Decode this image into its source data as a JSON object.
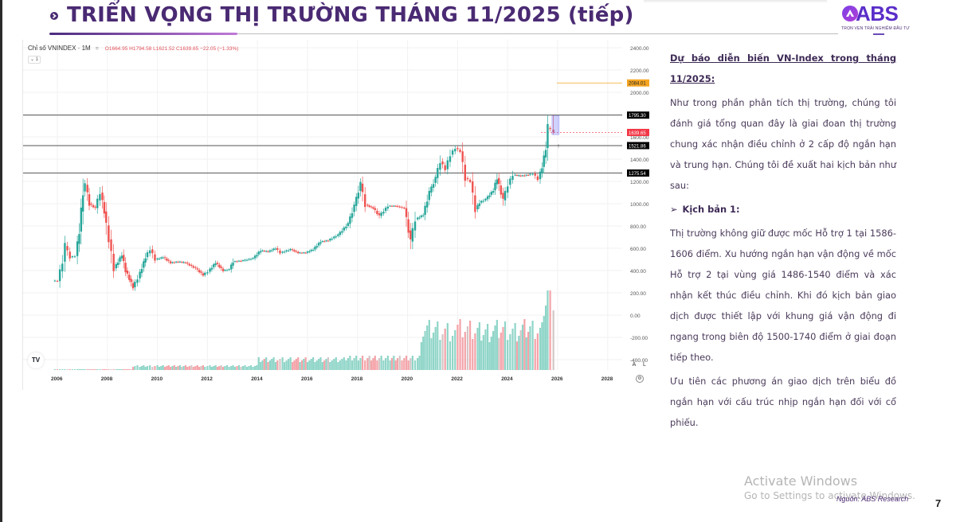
{
  "header": {
    "title": "TRIỂN VỌNG THỊ TRƯỜNG THÁNG 11/2025 (tiếp)",
    "logo_text": "ABS",
    "logo_tagline": "TRỌN VẸN TRẢI NGHIỆM ĐẦU TƯ",
    "accent_color": "#4a2a73",
    "brand_color": "#5a2ec9"
  },
  "chart_panel": {
    "symbol_label": "Chỉ số VNINDEX · 1M",
    "ohlc": "O1664.95 H1794.58 L1621.52 C1639.65 −22.05 (−1.33%)",
    "collapse_label": "⌄ 1",
    "tv_logo": "TV",
    "scale_auto": "A",
    "scale_log": "L",
    "settings_icon": "⚙"
  },
  "chart_data": {
    "type": "candlestick",
    "title": "Chỉ số VNINDEX · 1M",
    "xlabel": "",
    "ylabel": "",
    "ylim": [
      -400,
      2400
    ],
    "y_ticks": [
      2400,
      2200,
      2000,
      1800,
      1600,
      1400,
      1200,
      1000,
      800,
      600,
      400,
      200,
      0,
      -200,
      -400
    ],
    "y_tick_labels": [
      "2400.00",
      "2200.00",
      "2000.00",
      "",
      "1600.00",
      "1400.00",
      "1200.00",
      "1000.00",
      "800.00",
      "600.00",
      "400.00",
      "200.00",
      "0.00",
      "-200.00",
      "-400.00"
    ],
    "x_ticks": [
      "2006",
      "2008",
      "2010",
      "2012",
      "2014",
      "2016",
      "2018",
      "2020",
      "2022",
      "2024",
      "2026",
      "2028"
    ],
    "last_bar": {
      "open": 1664.95,
      "high": 1794.58,
      "low": 1621.52,
      "close": 1639.65,
      "change": -22.05,
      "change_pct": -1.33
    },
    "horizontal_levels": [
      {
        "value": 2084.01,
        "label": "2084.01",
        "color": "#f5a623"
      },
      {
        "value": 1795.3,
        "label": "1795.30",
        "color": "#000000"
      },
      {
        "value": 1639.65,
        "label": "1639.65",
        "color": "#f23645"
      },
      {
        "value": 1521.86,
        "label": "1521.86",
        "color": "#000000"
      },
      {
        "value": 1275.54,
        "label": "1275.54",
        "color": "#000000"
      }
    ],
    "price_path": [
      {
        "t": 2005.9,
        "v": 310
      },
      {
        "t": 2006.1,
        "v": 305
      },
      {
        "t": 2006.3,
        "v": 480
      },
      {
        "t": 2006.4,
        "v": 620
      },
      {
        "t": 2006.6,
        "v": 520
      },
      {
        "t": 2006.8,
        "v": 530
      },
      {
        "t": 2006.95,
        "v": 750
      },
      {
        "t": 2007.1,
        "v": 1110
      },
      {
        "t": 2007.2,
        "v": 1170
      },
      {
        "t": 2007.35,
        "v": 1000
      },
      {
        "t": 2007.6,
        "v": 960
      },
      {
        "t": 2007.8,
        "v": 1100
      },
      {
        "t": 2007.95,
        "v": 930
      },
      {
        "t": 2008.15,
        "v": 680
      },
      {
        "t": 2008.35,
        "v": 420
      },
      {
        "t": 2008.5,
        "v": 480
      },
      {
        "t": 2008.65,
        "v": 540
      },
      {
        "t": 2008.8,
        "v": 400
      },
      {
        "t": 2009.1,
        "v": 250
      },
      {
        "t": 2009.3,
        "v": 330
      },
      {
        "t": 2009.6,
        "v": 520
      },
      {
        "t": 2009.8,
        "v": 590
      },
      {
        "t": 2010.0,
        "v": 500
      },
      {
        "t": 2010.3,
        "v": 520
      },
      {
        "t": 2010.6,
        "v": 470
      },
      {
        "t": 2010.9,
        "v": 480
      },
      {
        "t": 2011.2,
        "v": 470
      },
      {
        "t": 2011.6,
        "v": 420
      },
      {
        "t": 2011.9,
        "v": 360
      },
      {
        "t": 2012.1,
        "v": 390
      },
      {
        "t": 2012.4,
        "v": 470
      },
      {
        "t": 2012.7,
        "v": 400
      },
      {
        "t": 2012.95,
        "v": 410
      },
      {
        "t": 2013.1,
        "v": 480
      },
      {
        "t": 2013.5,
        "v": 490
      },
      {
        "t": 2013.9,
        "v": 510
      },
      {
        "t": 2014.2,
        "v": 580
      },
      {
        "t": 2014.5,
        "v": 570
      },
      {
        "t": 2014.8,
        "v": 600
      },
      {
        "t": 2015.0,
        "v": 560
      },
      {
        "t": 2015.4,
        "v": 590
      },
      {
        "t": 2015.7,
        "v": 560
      },
      {
        "t": 2016.0,
        "v": 560
      },
      {
        "t": 2016.3,
        "v": 590
      },
      {
        "t": 2016.6,
        "v": 660
      },
      {
        "t": 2016.9,
        "v": 670
      },
      {
        "t": 2017.3,
        "v": 720
      },
      {
        "t": 2017.7,
        "v": 820
      },
      {
        "t": 2017.95,
        "v": 980
      },
      {
        "t": 2018.2,
        "v": 1180
      },
      {
        "t": 2018.4,
        "v": 990
      },
      {
        "t": 2018.7,
        "v": 960
      },
      {
        "t": 2018.95,
        "v": 890
      },
      {
        "t": 2019.3,
        "v": 980
      },
      {
        "t": 2019.6,
        "v": 980
      },
      {
        "t": 2019.95,
        "v": 960
      },
      {
        "t": 2020.2,
        "v": 660
      },
      {
        "t": 2020.4,
        "v": 860
      },
      {
        "t": 2020.7,
        "v": 900
      },
      {
        "t": 2020.95,
        "v": 1100
      },
      {
        "t": 2021.2,
        "v": 1230
      },
      {
        "t": 2021.4,
        "v": 1380
      },
      {
        "t": 2021.6,
        "v": 1310
      },
      {
        "t": 2021.8,
        "v": 1440
      },
      {
        "t": 2022.0,
        "v": 1500
      },
      {
        "t": 2022.2,
        "v": 1470
      },
      {
        "t": 2022.4,
        "v": 1230
      },
      {
        "t": 2022.6,
        "v": 1200
      },
      {
        "t": 2022.8,
        "v": 950
      },
      {
        "t": 2022.95,
        "v": 1010
      },
      {
        "t": 2023.2,
        "v": 1040
      },
      {
        "t": 2023.5,
        "v": 1120
      },
      {
        "t": 2023.65,
        "v": 1230
      },
      {
        "t": 2023.9,
        "v": 1030
      },
      {
        "t": 2024.1,
        "v": 1170
      },
      {
        "t": 2024.3,
        "v": 1260
      },
      {
        "t": 2024.6,
        "v": 1250
      },
      {
        "t": 2024.9,
        "v": 1260
      },
      {
        "t": 2025.1,
        "v": 1270
      },
      {
        "t": 2025.3,
        "v": 1220
      },
      {
        "t": 2025.45,
        "v": 1330
      },
      {
        "t": 2025.6,
        "v": 1500
      },
      {
        "t": 2025.7,
        "v": 1680
      },
      {
        "t": 2025.78,
        "v": 1664.95
      },
      {
        "t": 2025.85,
        "v": 1639.65
      }
    ],
    "volume_note": "Volume histogram in lower pane, peaking in mid-2025"
  },
  "text_panel": {
    "heading": "Dự báo diễn biến VN-Index trong tháng 11/2025:",
    "intro": "Như trong phần phân tích thị trường, chúng tôi đánh giá tổng quan đây là giai đoan thị trường chung xác nhận điều chỉnh ở 2 cấp độ ngắn hạn và trung hạn. Chúng tôi đề xuất hai kịch bản như sau:",
    "scenario_marker": "➢",
    "scenario_title": "Kịch bản 1:",
    "scenario_body": "Thị trường không giữ được mốc Hỗ trợ 1 tại 1586-1606 điểm. Xu hướng ngắn hạn vận động về mốc Hỗ trợ 2 tại vùng giá 1486-1540 điểm và xác nhận kết thúc điều chỉnh. Khi đó kịch bản giao dịch được thiết lập với khung giá vận động đi ngang trong biên độ 1500-1740 điểm ở giai đoạn tiếp theo.",
    "priority": "Ưu tiên các phương án giao dịch trên biểu đồ ngắn hạn với cấu trúc nhịp ngắn hạn đối với cổ phiếu."
  },
  "footer": {
    "watermark_line1": "Activate Windows",
    "watermark_line2": "Go to Settings to activate Windows.",
    "source": "Nguồn: ABS Research",
    "page_number": "7"
  }
}
